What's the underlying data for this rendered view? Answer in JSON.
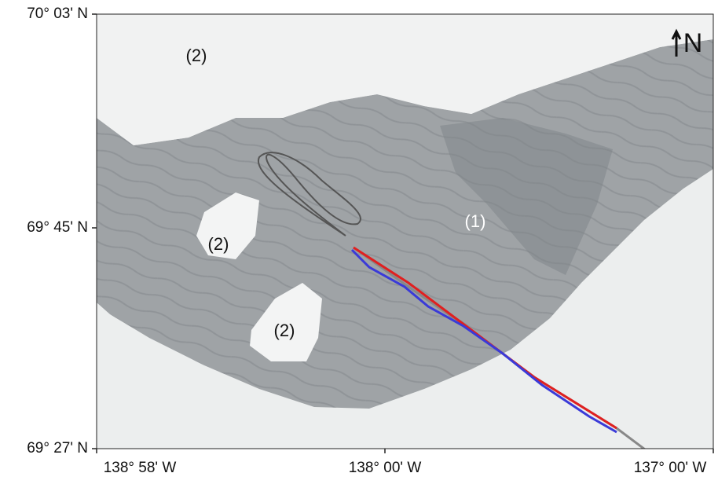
{
  "axes": {
    "lat_labels": [
      "70° 03' N",
      "69° 45' N",
      "69° 27' N"
    ],
    "lon_labels": [
      "138° 58' W",
      "138° 00' W",
      "137° 00' W"
    ]
  },
  "regions": [
    "(2)",
    "(2)",
    "(2)",
    "(1)"
  ],
  "north_label": "N"
}
